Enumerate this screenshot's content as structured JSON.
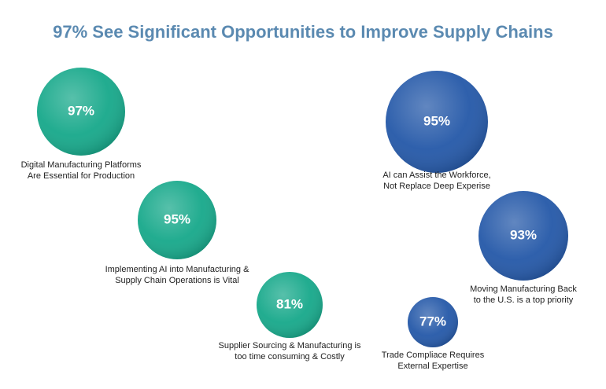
{
  "chart_data": {
    "type": "bubble",
    "title": "97% See Significant Opportunities to Improve Supply Chains",
    "categories": [
      [
        "Digital Manufacturing Platforms",
        "Are Essential for Production"
      ],
      [
        "Implementing AI into Manufacturing &",
        "Supply Chain Operations is Vital"
      ],
      [
        "Supplier Sourcing & Manufacturing is",
        "too time consuming & Costly"
      ],
      [
        "AI can Assist the Workforce,",
        "Not Replace Deep Experise"
      ],
      [
        "Moving Manufacturing Back",
        "to the U.S. is a top priority"
      ],
      [
        "Trade Compliace Requires",
        "External Expertise"
      ]
    ],
    "values": [
      97,
      95,
      81,
      95,
      93,
      77
    ],
    "value_labels": [
      "97%",
      "95%",
      "81%",
      "95%",
      "93%",
      "77%"
    ],
    "colors": [
      "#16a88a",
      "#16a88a",
      "#16a88a",
      "#2458a8",
      "#2458a8",
      "#2458a8"
    ]
  }
}
